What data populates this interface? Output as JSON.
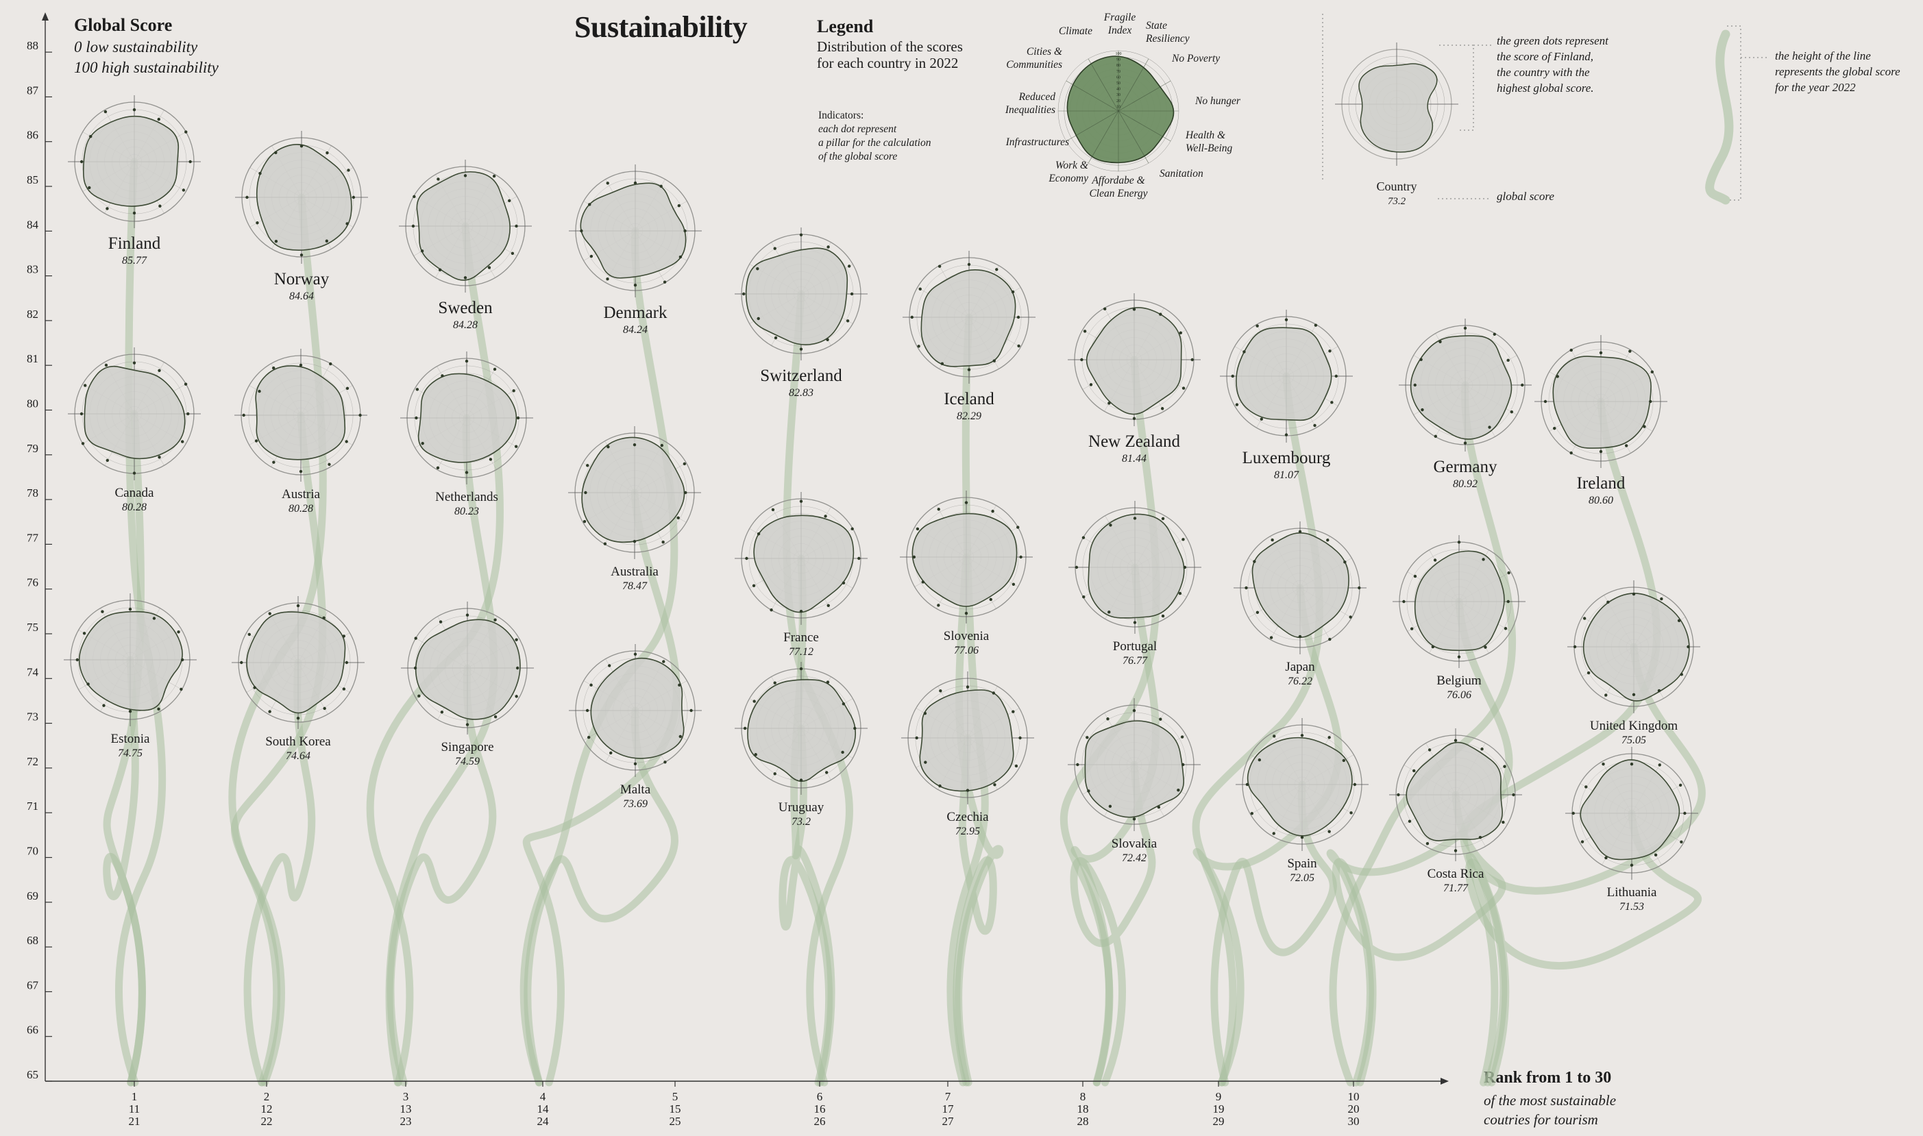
{
  "title": "Sustainability",
  "global_score": {
    "heading": "Global Score",
    "line1": "0 low sustainability",
    "line2": "100 high sustainability"
  },
  "legend": {
    "heading": "Legend",
    "desc1": "Distribution of the scores",
    "desc2": "for each country in 2022",
    "ind_title": "Indicators:",
    "ind_1": "each dot represent",
    "ind_2": "a pillar for the calculation",
    "ind_3": "of the global score",
    "pillars": [
      {
        "lines": [
          "Fragile",
          "Index"
        ]
      },
      {
        "lines": [
          "State",
          "Resiliency"
        ]
      },
      {
        "lines": [
          "No Poverty"
        ]
      },
      {
        "lines": [
          "No hunger"
        ]
      },
      {
        "lines": [
          "Health &",
          "Well-Being"
        ]
      },
      {
        "lines": [
          "Sanitation"
        ]
      },
      {
        "lines": [
          "Affordabe &",
          "Clean Energy"
        ]
      },
      {
        "lines": [
          "Work &",
          "Economy"
        ]
      },
      {
        "lines": [
          "Infrastructures"
        ]
      },
      {
        "lines": [
          "Reduced",
          "Inequalities"
        ]
      },
      {
        "lines": [
          "Cities &",
          "Communities"
        ]
      },
      {
        "lines": [
          "Climate"
        ]
      }
    ],
    "scale_ticks": [
      "100",
      "90",
      "80",
      "70",
      "60",
      "50",
      "40",
      "30",
      "20",
      "10"
    ],
    "example_country": "Country",
    "example_score": "73.2",
    "note_green_1": "the green dots represent",
    "note_green_2": "the score of Finland,",
    "note_green_3": "the country with the",
    "note_green_4": "highest global score.",
    "note_global": "global score",
    "note_height_1": "the height of the line",
    "note_height_2": "represents the global score",
    "note_height_3": "for the year 2022"
  },
  "rank": {
    "title": "Rank from 1 to 30",
    "sub1": "of the most sustainable",
    "sub2": "coutries for tourism"
  },
  "colors": {
    "background": "#ebe8e5",
    "ribbon": "#a9bfa0",
    "legend_fill": "#6f8e63",
    "radar_fill": "#cfcfcb",
    "radar_stroke": "#3d4a35",
    "axis": "#333333"
  },
  "chart_data": {
    "type": "radar-ribbon",
    "title": "Sustainability",
    "ylabel": "Global Score",
    "xlabel": "Rank from 1 to 30",
    "ylim": [
      65,
      89
    ],
    "y_ticks": [
      "65",
      "66",
      "67",
      "68",
      "69",
      "70",
      "71",
      "72",
      "73",
      "74",
      "75",
      "76",
      "77",
      "78",
      "79",
      "80",
      "81",
      "82",
      "83",
      "84",
      "85",
      "86",
      "87",
      "88"
    ],
    "x_ticks": [
      {
        "lines": [
          "1",
          "11",
          "21"
        ]
      },
      {
        "lines": [
          "2",
          "12",
          "22"
        ]
      },
      {
        "lines": [
          "3",
          "13",
          "23"
        ]
      },
      {
        "lines": [
          "4",
          "14",
          "24"
        ]
      },
      {
        "lines": [
          "5",
          "15",
          "25"
        ]
      },
      {
        "lines": [
          "6",
          "16",
          "26"
        ]
      },
      {
        "lines": [
          "7",
          "17",
          "27"
        ]
      },
      {
        "lines": [
          "8",
          "18",
          "28"
        ]
      },
      {
        "lines": [
          "9",
          "19",
          "29"
        ]
      },
      {
        "lines": [
          "10",
          "20",
          "30"
        ]
      }
    ],
    "countries": [
      {
        "name": "Finland",
        "score": "85.77",
        "rank": 1
      },
      {
        "name": "Norway",
        "score": "84.64",
        "rank": 2
      },
      {
        "name": "Sweden",
        "score": "84.28",
        "rank": 3
      },
      {
        "name": "Denmark",
        "score": "84.24",
        "rank": 4
      },
      {
        "name": "Switzerland",
        "score": "82.83",
        "rank": 5
      },
      {
        "name": "Iceland",
        "score": "82.29",
        "rank": 6
      },
      {
        "name": "New Zealand",
        "score": "81.44",
        "rank": 7
      },
      {
        "name": "Luxembourg",
        "score": "81.07",
        "rank": 8
      },
      {
        "name": "Germany",
        "score": "80.92",
        "rank": 9
      },
      {
        "name": "Ireland",
        "score": "80.60",
        "rank": 10
      },
      {
        "name": "Canada",
        "score": "80.28",
        "rank": 11
      },
      {
        "name": "Austria",
        "score": "80.28",
        "rank": 12
      },
      {
        "name": "Netherlands",
        "score": "80.23",
        "rank": 13
      },
      {
        "name": "Australia",
        "score": "78.47",
        "rank": 14
      },
      {
        "name": "France",
        "score": "77.12",
        "rank": 15
      },
      {
        "name": "Slovenia",
        "score": "77.06",
        "rank": 16
      },
      {
        "name": "Portugal",
        "score": "76.77",
        "rank": 17
      },
      {
        "name": "Japan",
        "score": "76.22",
        "rank": 18
      },
      {
        "name": "Belgium",
        "score": "76.06",
        "rank": 19
      },
      {
        "name": "United Kingdom",
        "score": "75.05",
        "rank": 20
      },
      {
        "name": "Estonia",
        "score": "74.75",
        "rank": 21
      },
      {
        "name": "South Korea",
        "score": "74.64",
        "rank": 22
      },
      {
        "name": "Singapore",
        "score": "74.59",
        "rank": 23
      },
      {
        "name": "Malta",
        "score": "73.69",
        "rank": 24
      },
      {
        "name": "Uruguay",
        "score": "73.2",
        "rank": 25
      },
      {
        "name": "Czechia",
        "score": "72.95",
        "rank": 26
      },
      {
        "name": "Slovakia",
        "score": "72.42",
        "rank": 27
      },
      {
        "name": "Spain",
        "score": "72.05",
        "rank": 28
      },
      {
        "name": "Costa Rica",
        "score": "71.77",
        "rank": 29
      },
      {
        "name": "Lithuania",
        "score": "71.53",
        "rank": 30
      }
    ]
  }
}
